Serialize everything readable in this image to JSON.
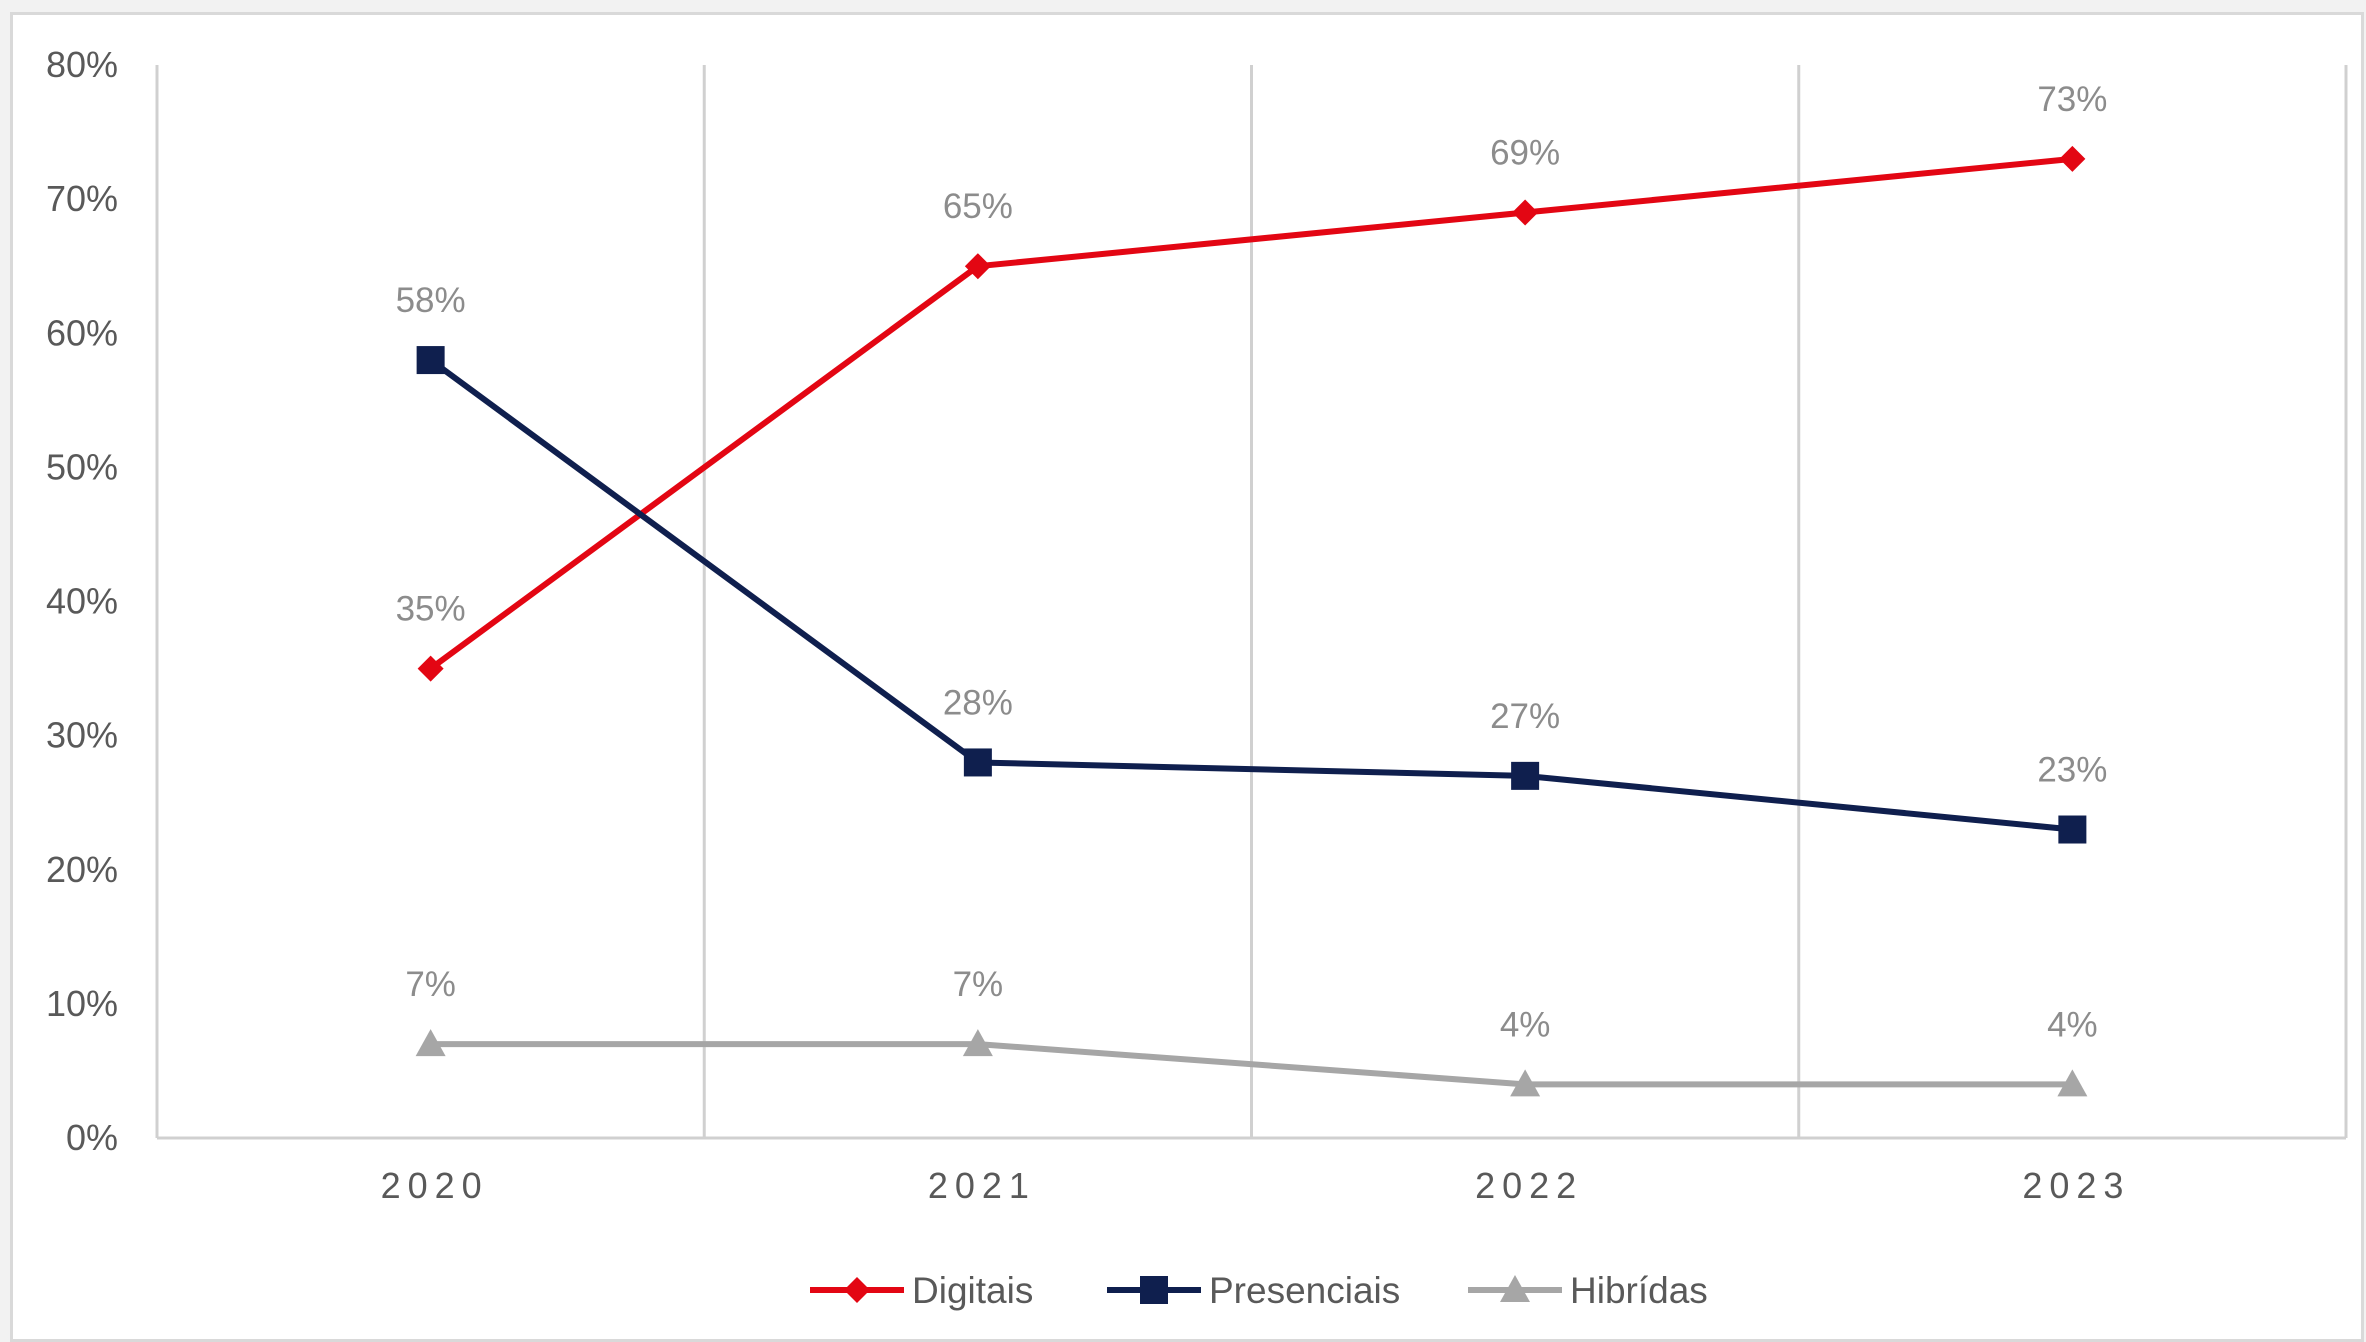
{
  "chart_data": {
    "type": "line",
    "title": "",
    "xlabel": "",
    "ylabel": "",
    "categories": [
      "2020",
      "2021",
      "2022",
      "2023"
    ],
    "ylim": [
      0,
      0.8
    ],
    "yticks": [
      "0%",
      "10%",
      "20%",
      "30%",
      "40%",
      "50%",
      "60%",
      "70%",
      "80%"
    ],
    "grid": "vertical",
    "legend_position": "bottom",
    "series": [
      {
        "name": "Digitais",
        "values": [
          0.35,
          0.65,
          0.69,
          0.73
        ],
        "labels": [
          "35%",
          "65%",
          "69%",
          "73%"
        ],
        "color": "#e30613",
        "marker": "diamond"
      },
      {
        "name": "Presenciais",
        "values": [
          0.58,
          0.28,
          0.27,
          0.23
        ],
        "labels": [
          "58%",
          "28%",
          "27%",
          "23%"
        ],
        "color": "#0f1f4e",
        "marker": "square"
      },
      {
        "name": "Hibrídas",
        "values": [
          0.07,
          0.07,
          0.04,
          0.04
        ],
        "labels": [
          "7%",
          "7%",
          "4%",
          "4%"
        ],
        "color": "#a6a6a6",
        "marker": "triangle"
      }
    ]
  }
}
